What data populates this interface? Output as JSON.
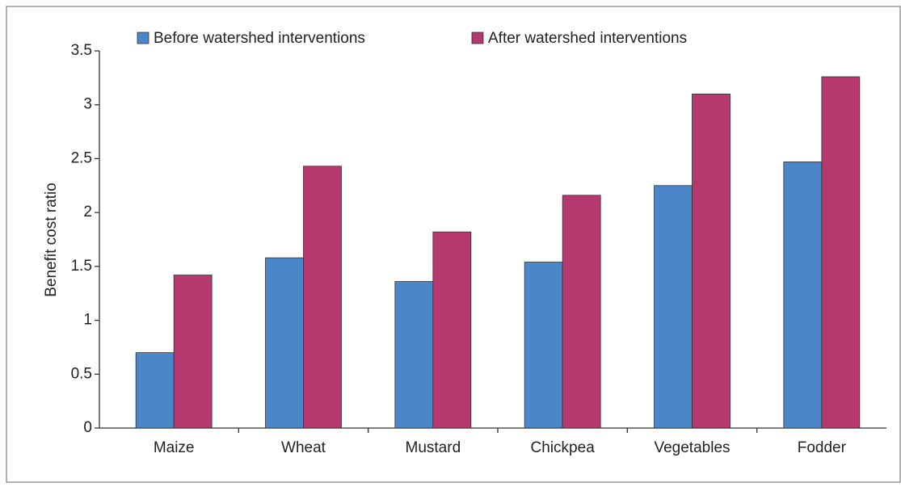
{
  "chart_data": {
    "type": "bar",
    "y_label": "Benefit cost ratio",
    "categories": [
      "Maize",
      "Wheat",
      "Mustard",
      "Chickpea",
      "Vegetables",
      "Fodder"
    ],
    "series": [
      {
        "name": "Before watershed interventions",
        "color": "#4a86c8",
        "values": [
          0.7,
          1.58,
          1.36,
          1.54,
          2.25,
          2.47
        ]
      },
      {
        "name": "After watershed interventions",
        "color": "#b5396f",
        "values": [
          1.42,
          2.43,
          1.82,
          2.16,
          3.1,
          3.26
        ]
      }
    ],
    "ylim": [
      0,
      3.5
    ],
    "yticks": [
      0,
      0.5,
      1,
      1.5,
      2,
      2.5,
      3,
      3.5
    ],
    "grid": false,
    "legend": "top"
  }
}
